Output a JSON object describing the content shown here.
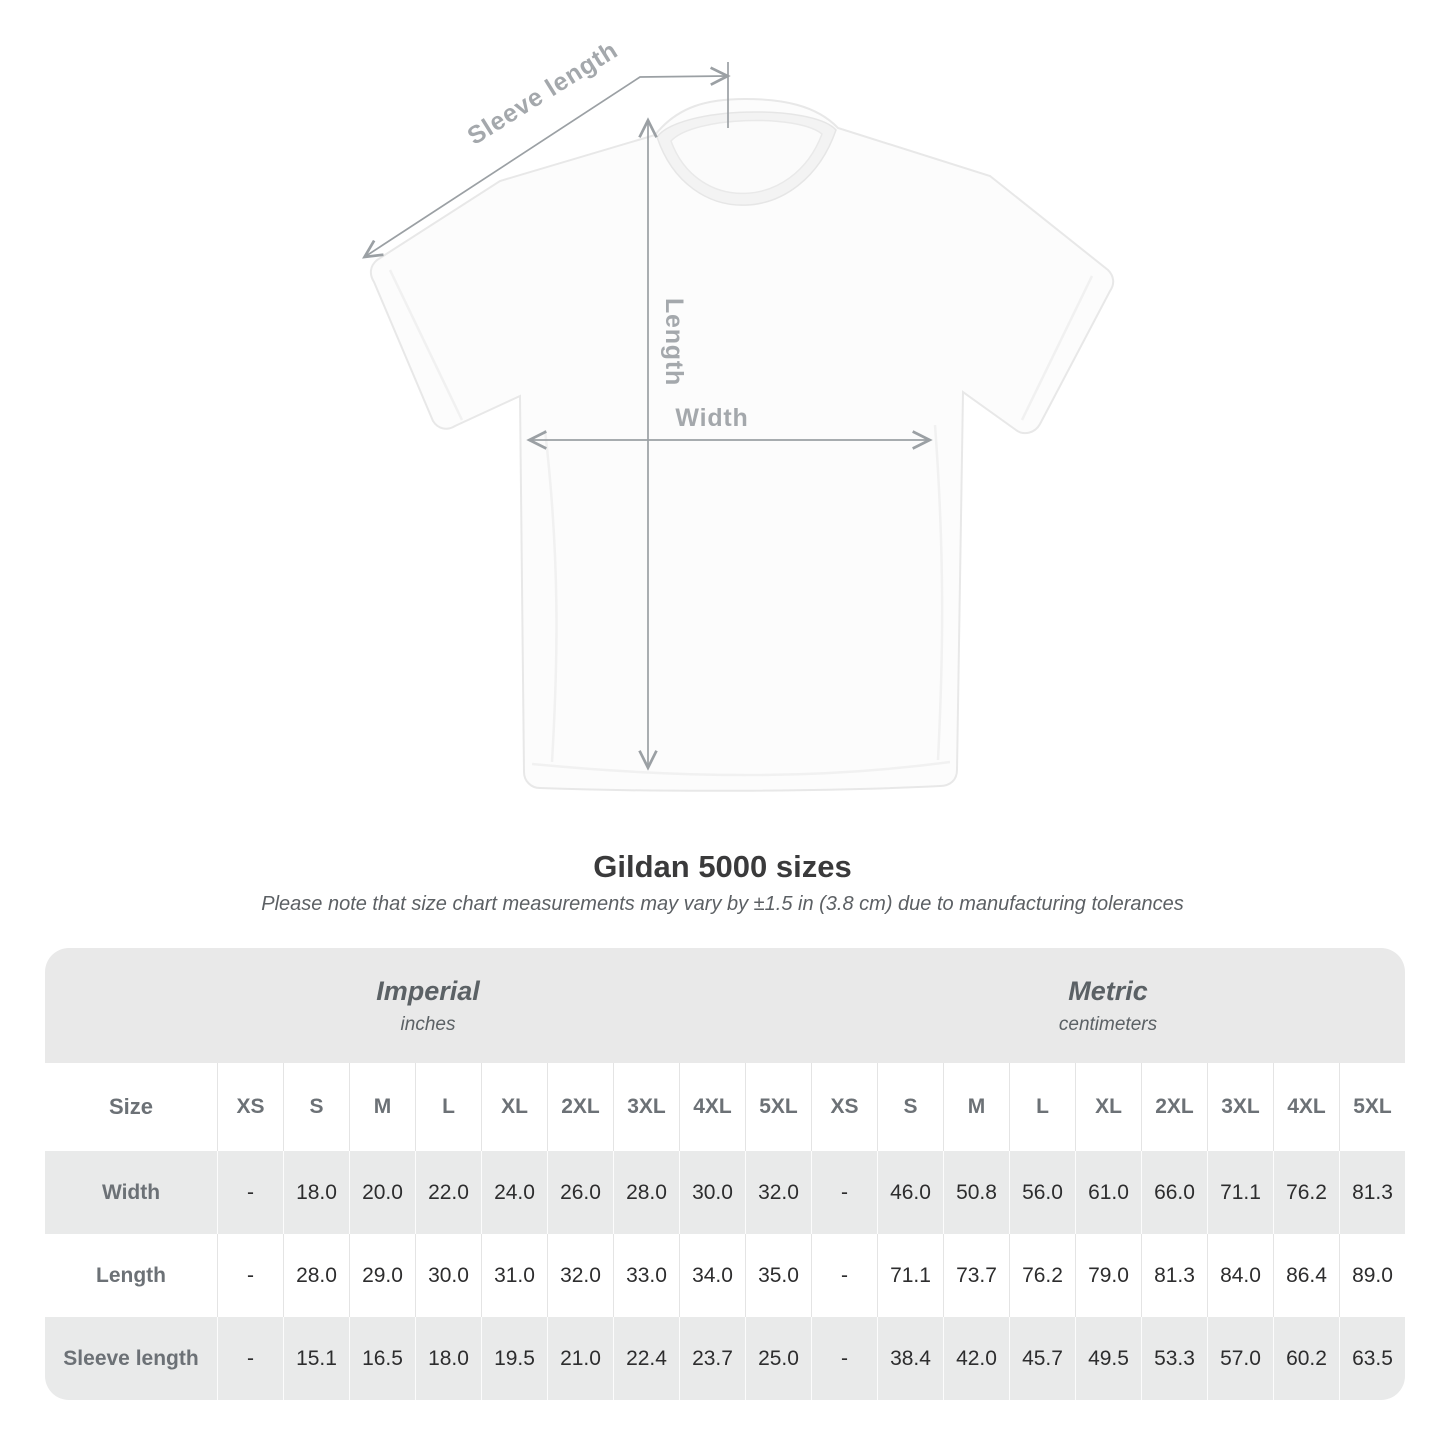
{
  "diagram": {
    "labels": {
      "sleeve_length": "Sleeve length",
      "length": "Length",
      "width": "Width"
    }
  },
  "chart_data": {
    "type": "table",
    "title": "Gildan 5000 sizes",
    "subtitle": "Please note that size chart measurements may vary by ±1.5 in (3.8 cm) due to manufacturing tolerances",
    "column_groups": [
      {
        "label": "Imperial",
        "unit": "inches"
      },
      {
        "label": "Metric",
        "unit": "centimeters"
      }
    ],
    "size_header": "Size",
    "sizes": [
      "XS",
      "S",
      "M",
      "L",
      "XL",
      "2XL",
      "3XL",
      "4XL",
      "5XL"
    ],
    "rows": [
      {
        "label": "Width",
        "imperial": [
          "-",
          "18.0",
          "20.0",
          "22.0",
          "24.0",
          "26.0",
          "28.0",
          "30.0",
          "32.0"
        ],
        "metric": [
          "-",
          "46.0",
          "50.8",
          "56.0",
          "61.0",
          "66.0",
          "71.1",
          "76.2",
          "81.3"
        ]
      },
      {
        "label": "Length",
        "imperial": [
          "-",
          "28.0",
          "29.0",
          "30.0",
          "31.0",
          "32.0",
          "33.0",
          "34.0",
          "35.0"
        ],
        "metric": [
          "-",
          "71.1",
          "73.7",
          "76.2",
          "79.0",
          "81.3",
          "84.0",
          "86.4",
          "89.0"
        ]
      },
      {
        "label": "Sleeve length",
        "imperial": [
          "-",
          "15.1",
          "16.5",
          "18.0",
          "19.5",
          "21.0",
          "22.4",
          "23.7",
          "25.0"
        ],
        "metric": [
          "-",
          "38.4",
          "42.0",
          "45.7",
          "49.5",
          "53.3",
          "57.0",
          "60.2",
          "63.5"
        ]
      }
    ]
  },
  "colors": {
    "band_background": "#e9e9e9",
    "alt_row_background": "#e9eaea",
    "header_text": "#6c7176",
    "value_text": "#2d2d2e",
    "annotation_gray": "#9ba0a4",
    "title_text": "#3a3a3b"
  }
}
